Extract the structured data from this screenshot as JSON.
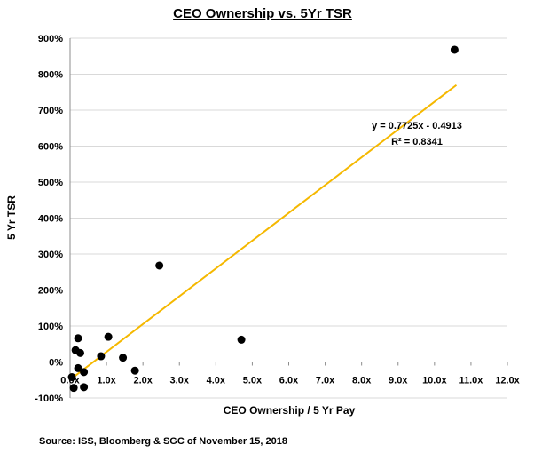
{
  "chart_data": {
    "type": "scatter",
    "title": "CEO Ownership vs. 5Yr TSR",
    "xlabel": "CEO Ownership / 5 Yr Pay",
    "ylabel": "5 Yr TSR",
    "xlim": [
      0,
      12
    ],
    "ylim": [
      -1,
      9
    ],
    "x_ticks": [
      0,
      1,
      2,
      3,
      4,
      5,
      6,
      7,
      8,
      9,
      10,
      11,
      12
    ],
    "x_tick_labels": [
      "0.0x",
      "1.0x",
      "2.0x",
      "3.0x",
      "4.0x",
      "5.0x",
      "6.0x",
      "7.0x",
      "8.0x",
      "9.0x",
      "10.0x",
      "11.0x",
      "12.0x"
    ],
    "y_ticks": [
      -1,
      0,
      1,
      2,
      3,
      4,
      5,
      6,
      7,
      8,
      9
    ],
    "y_tick_labels": [
      "-100%",
      "0%",
      "100%",
      "200%",
      "300%",
      "400%",
      "500%",
      "600%",
      "700%",
      "800%",
      "900%"
    ],
    "grid": "horizontal",
    "point_color": "#000000",
    "trendline_color": "#F5B800",
    "points": [
      {
        "x": 10.55,
        "y": 8.68
      },
      {
        "x": 2.45,
        "y": 2.68
      },
      {
        "x": 4.7,
        "y": 0.62
      },
      {
        "x": 1.05,
        "y": 0.7
      },
      {
        "x": 0.22,
        "y": 0.66
      },
      {
        "x": 0.15,
        "y": 0.33
      },
      {
        "x": 0.28,
        "y": 0.25
      },
      {
        "x": 0.85,
        "y": 0.16
      },
      {
        "x": 1.45,
        "y": 0.12
      },
      {
        "x": 0.22,
        "y": -0.17
      },
      {
        "x": 1.78,
        "y": -0.24
      },
      {
        "x": 0.38,
        "y": -0.28
      },
      {
        "x": 0.1,
        "y": -0.72
      },
      {
        "x": 0.38,
        "y": -0.7
      },
      {
        "x": 0.05,
        "y": -0.42
      }
    ],
    "trendline": {
      "slope": 0.7725,
      "intercept": -0.4913,
      "x_range": [
        0.1,
        10.6
      ],
      "equation": "y = 0.7725x - 0.4913",
      "r_squared": "R² = 0.8341"
    }
  },
  "source": "Source: ISS, Bloomberg & SGC of November 15, 2018"
}
